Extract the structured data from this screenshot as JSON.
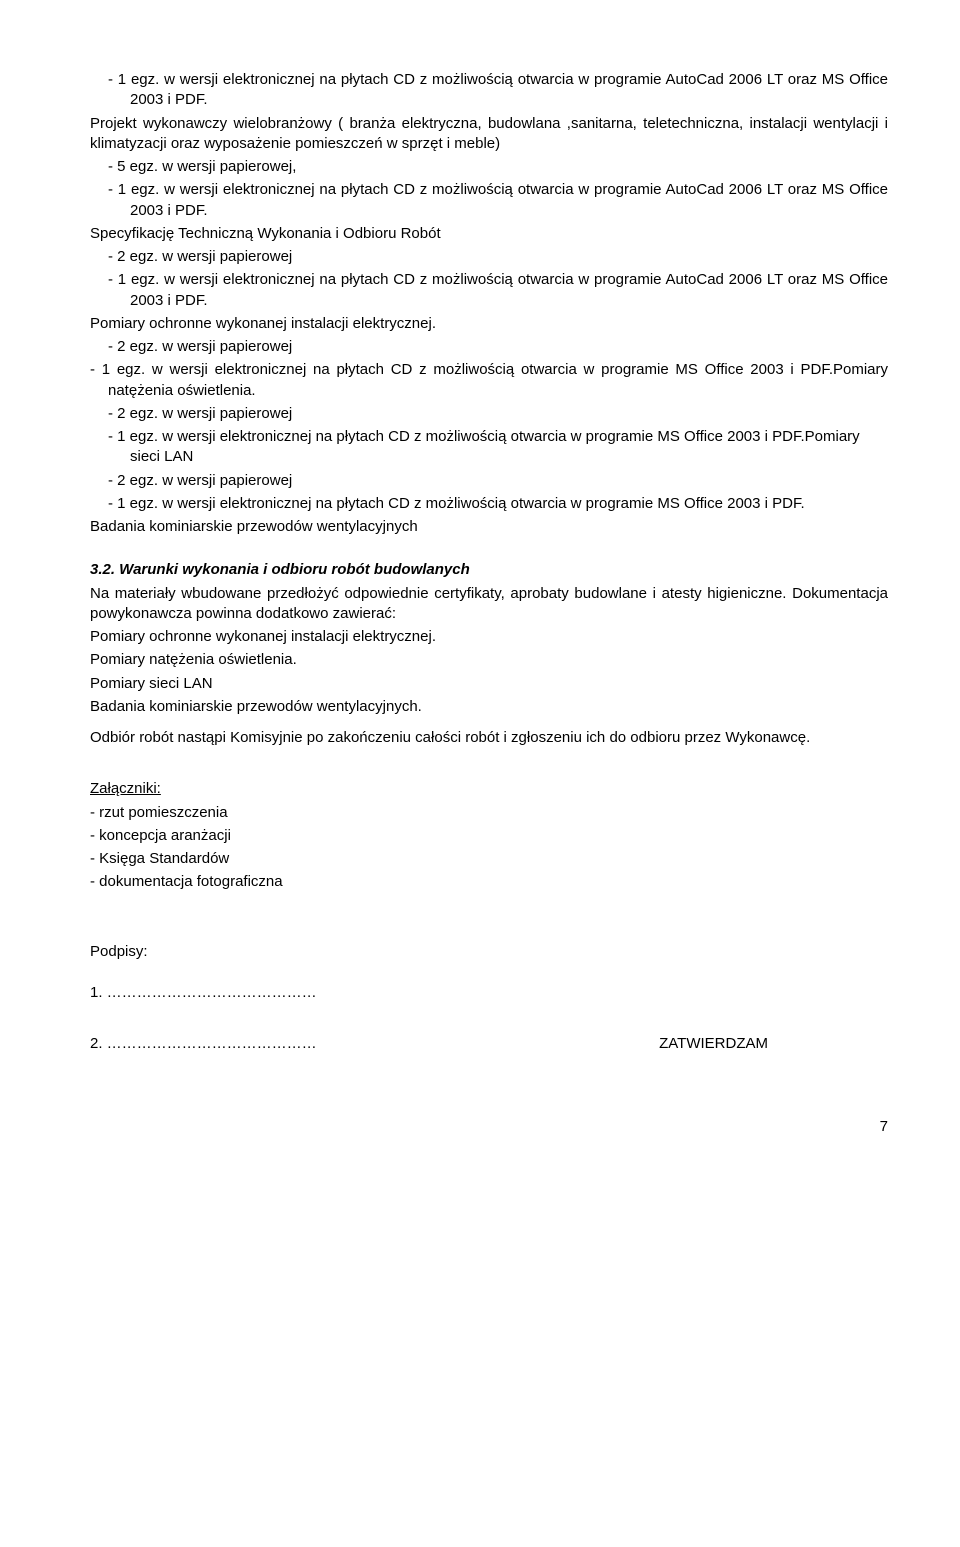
{
  "l1": "-   1 egz. w wersji elektronicznej na płytach CD z możliwością otwarcia w programie AutoCad 2006 LT oraz MS Office 2003 i PDF.",
  "p1": "Projekt wykonawczy wielobranżowy ( branża elektryczna, budowlana ,sanitarna, teletechniczna, instalacji wentylacji i klimatyzacji oraz wyposażenie pomieszczeń w sprzęt i meble)",
  "l2": "-   5 egz. w wersji papierowej,",
  "l3": "-   1 egz. w wersji elektronicznej na płytach CD z możliwością otwarcia w programie AutoCad 2006 LT oraz MS Office 2003 i PDF.",
  "p2": "Specyfikację Techniczną Wykonania i Odbioru Robót",
  "l4": "-   2 egz. w wersji papierowej",
  "l5": "-   1 egz. w wersji elektronicznej na płytach CD z możliwością otwarcia w programie AutoCad 2006 LT oraz MS Office 2003 i PDF.",
  "p3": "Pomiary ochronne wykonanej instalacji elektrycznej.",
  "l6": "-   2 egz. w wersji papierowej",
  "l7": "-    1 egz. w wersji elektronicznej na płytach CD z możliwością otwarcia w programie MS Office 2003 i PDF.Pomiary natężenia oświetlenia.",
  "l8": "-   2 egz. w wersji papierowej",
  "l9": "-   1 egz. w wersji elektronicznej na płytach CD z możliwością otwarcia w programie MS Office 2003 i PDF.Pomiary sieci LAN",
  "l10": "-   2 egz. w wersji papierowej",
  "l11": "-   1 egz. w wersji elektronicznej na płytach CD z możliwością otwarcia w programie MS Office 2003 i PDF.",
  "p4": "Badania kominiarskie przewodów wentylacyjnych",
  "sec": "3.2. Warunki wykonania i odbioru robót budowlanych",
  "p5": "Na materiały wbudowane przedłożyć odpowiednie certyfikaty, aprobaty budowlane i atesty higieniczne. Dokumentacja powykonawcza powinna dodatkowo zawierać:",
  "p6": "Pomiary ochronne wykonanej instalacji elektrycznej.",
  "p7": "Pomiary natężenia oświetlenia.",
  "p8": "Pomiary sieci LAN",
  "p9": "Badania kominiarskie przewodów wentylacyjnych.",
  "p10": "Odbiór robót nastąpi Komisyjnie po zakończeniu całości robót i zgłoszeniu ich do odbioru przez Wykonawcę.",
  "att_title": "Załączniki:",
  "att1": "- rzut pomieszczenia",
  "att2": "- koncepcja aranżacji",
  "att3": "- Księga Standardów",
  "att4": "- dokumentacja fotograficzna",
  "sig_title": "Podpisy:",
  "sig1": "1. ……………………………………",
  "sig2": "2. ……………………………………",
  "approve": "ZATWIERDZAM",
  "page": "7"
}
